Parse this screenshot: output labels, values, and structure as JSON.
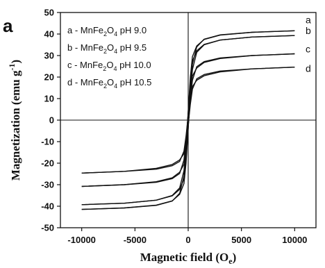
{
  "chart_data": {
    "type": "line",
    "panel_label": "a",
    "xlabel": {
      "main": "Magnetic field (O",
      "sub": "e",
      "end": ")"
    },
    "ylabel": {
      "main": "Magnetization (emu g",
      "sup": "-1",
      "end": ")"
    },
    "xlim": [
      -12000,
      12000
    ],
    "ylim": [
      -50,
      50
    ],
    "xticks": [
      -10000,
      -5000,
      0,
      5000,
      10000
    ],
    "yticks": [
      -50,
      -40,
      -30,
      -20,
      -10,
      0,
      10,
      20,
      30,
      40,
      50
    ],
    "grid": false,
    "legend_placement": "top-left",
    "series": [
      {
        "name": "a",
        "legend": {
          "pre": "a - MnFe",
          "s1": "2",
          "mid": "O",
          "s2": "4",
          "post": " pH 9.0"
        },
        "branch_forward": {
          "x": [
            -10000,
            -6000,
            -3000,
            -1500,
            -800,
            -400,
            -200,
            0,
            200,
            400,
            800,
            1500,
            3000,
            6000,
            10000
          ],
          "y": [
            -41.5,
            -40.8,
            -39.5,
            -37.5,
            -34.5,
            -29.5,
            -20.0,
            -4.0,
            14.0,
            26.0,
            34.0,
            37.6,
            39.6,
            40.8,
            41.5
          ]
        },
        "branch_reverse": {
          "x": [
            10000,
            6000,
            3000,
            1500,
            800,
            400,
            200,
            0,
            -200,
            -400,
            -800,
            -1500,
            -3000,
            -6000,
            -10000
          ],
          "y": [
            41.5,
            40.8,
            39.5,
            37.5,
            34.5,
            29.5,
            20.0,
            4.0,
            -14.0,
            -26.0,
            -34.0,
            -37.6,
            -39.6,
            -40.8,
            -41.5
          ]
        }
      },
      {
        "name": "b",
        "legend": {
          "pre": "b - MnFe",
          "s1": "2",
          "mid": "O",
          "s2": "4",
          "post": " pH 9.5"
        },
        "branch_forward": {
          "x": [
            -10000,
            -6000,
            -3000,
            -1500,
            -800,
            -400,
            -200,
            0,
            200,
            400,
            800,
            1500,
            3000,
            6000,
            10000
          ],
          "y": [
            -39.3,
            -38.6,
            -37.2,
            -35.2,
            -32.2,
            -27.4,
            -18.5,
            -3.5,
            12.0,
            23.5,
            31.5,
            35.0,
            37.2,
            38.6,
            39.3
          ]
        },
        "branch_reverse": {
          "x": [
            10000,
            6000,
            3000,
            1500,
            800,
            400,
            200,
            0,
            -200,
            -400,
            -800,
            -1500,
            -3000,
            -6000,
            -10000
          ],
          "y": [
            39.3,
            38.6,
            37.2,
            35.2,
            32.2,
            27.4,
            18.5,
            3.5,
            -12.0,
            -23.5,
            -31.5,
            -35.0,
            -37.2,
            -38.6,
            -39.3
          ]
        }
      },
      {
        "name": "c",
        "legend": {
          "pre": "c - MnFe",
          "s1": "2",
          "mid": "O",
          "s2": "4",
          "post": " pH 10.0"
        },
        "branch_forward": {
          "x": [
            -10000,
            -6000,
            -3000,
            -1500,
            -800,
            -400,
            -200,
            0,
            200,
            400,
            800,
            1500,
            3000,
            6000,
            10000
          ],
          "y": [
            -30.8,
            -30.0,
            -28.6,
            -26.8,
            -24.2,
            -20.5,
            -14.0,
            -2.8,
            9.5,
            18.5,
            24.8,
            27.2,
            28.9,
            30.0,
            30.8
          ]
        },
        "branch_reverse": {
          "x": [
            10000,
            6000,
            3000,
            1500,
            800,
            400,
            200,
            0,
            -200,
            -400,
            -800,
            -1500,
            -3000,
            -6000,
            -10000
          ],
          "y": [
            30.8,
            30.0,
            28.6,
            26.8,
            24.2,
            20.5,
            14.0,
            2.8,
            -9.5,
            -18.5,
            -24.8,
            -27.2,
            -28.9,
            -30.0,
            -30.8
          ]
        }
      },
      {
        "name": "d",
        "legend": {
          "pre": "d - MnFe",
          "s1": "2",
          "mid": "O",
          "s2": "4",
          "post": " pH 10.5"
        },
        "branch_forward": {
          "x": [
            -10000,
            -6000,
            -3000,
            -1500,
            -800,
            -400,
            -200,
            0,
            200,
            400,
            800,
            1500,
            3000,
            6000,
            10000
          ],
          "y": [
            -24.6,
            -23.8,
            -22.4,
            -20.6,
            -18.5,
            -15.6,
            -10.6,
            -2.2,
            7.4,
            14.4,
            19.2,
            21.2,
            22.8,
            23.8,
            24.6
          ]
        },
        "branch_reverse": {
          "x": [
            10000,
            6000,
            3000,
            1500,
            800,
            400,
            200,
            0,
            -200,
            -400,
            -800,
            -1500,
            -3000,
            -6000,
            -10000
          ],
          "y": [
            24.6,
            23.8,
            22.4,
            20.6,
            18.5,
            15.6,
            10.6,
            2.2,
            -7.4,
            -14.4,
            -19.2,
            -21.2,
            -22.8,
            -23.8,
            -24.6
          ]
        }
      }
    ]
  }
}
